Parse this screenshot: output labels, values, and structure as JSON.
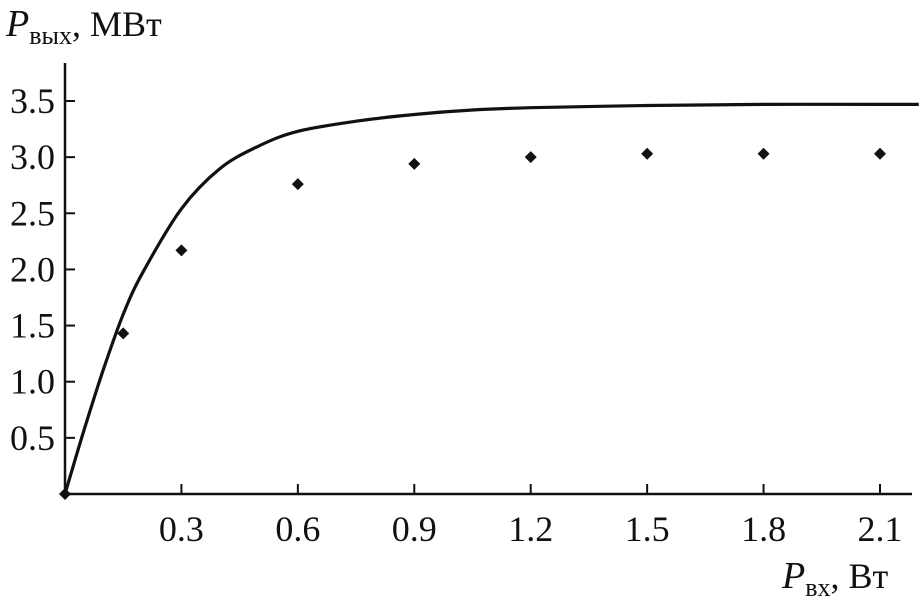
{
  "chart_data": {
    "type": "line",
    "title": "",
    "ylabel": {
      "var": "P",
      "sub": "вых",
      "unit": ", МВт"
    },
    "xlabel": {
      "var": "P",
      "sub": "вх",
      "unit": ", Вт"
    },
    "xlim": [
      0,
      2.2
    ],
    "ylim": [
      0,
      3.75
    ],
    "xticks": [
      0.3,
      0.6,
      0.9,
      1.2,
      1.5,
      1.8,
      2.1
    ],
    "xtick_labels": [
      "0.3",
      "0.6",
      "0.9",
      "1.2",
      "1.5",
      "1.8",
      "2.1"
    ],
    "yticks": [
      0.5,
      1.0,
      1.5,
      2.0,
      2.5,
      3.0,
      3.5
    ],
    "ytick_labels": [
      "0.5",
      "1.0",
      "1.5",
      "2.0",
      "2.5",
      "3.0",
      "3.5"
    ],
    "grid": false,
    "series": [
      {
        "kind": "line",
        "x": [
          0,
          0.05,
          0.1,
          0.15,
          0.2,
          0.3,
          0.4,
          0.5,
          0.6,
          0.75,
          0.9,
          1.05,
          1.2,
          1.5,
          1.8,
          2.1,
          2.2
        ],
        "y": [
          0,
          0.58,
          1.12,
          1.6,
          1.97,
          2.54,
          2.9,
          3.1,
          3.23,
          3.32,
          3.38,
          3.42,
          3.44,
          3.46,
          3.47,
          3.47,
          3.47
        ]
      },
      {
        "kind": "scatter",
        "x": [
          0,
          0.15,
          0.3,
          0.6,
          0.9,
          1.2,
          1.5,
          1.8,
          2.1
        ],
        "y": [
          0,
          1.43,
          2.17,
          2.76,
          2.94,
          3.0,
          3.03,
          3.03,
          3.03
        ]
      }
    ]
  }
}
